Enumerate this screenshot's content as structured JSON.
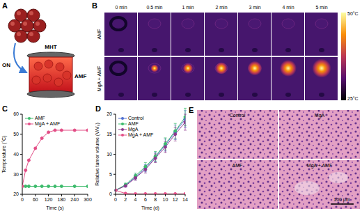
{
  "panel_A": {
    "label": "A",
    "switch": "ON",
    "treatment": "MHT",
    "field": "AMF"
  },
  "panel_B": {
    "label": "B",
    "times": [
      "0 min",
      "0.5 min",
      "1 min",
      "2 min",
      "3 min",
      "4 min",
      "5 min"
    ],
    "rows": [
      "AMF",
      "MgA + AMF"
    ],
    "color_bar_labels": [
      "50°C",
      "25°C"
    ]
  },
  "chart_data": [
    {
      "type": "line",
      "title": "C",
      "x_label": "Time (s)",
      "y_label": "Temperature (°C)",
      "x": [
        0,
        15,
        30,
        60,
        90,
        120,
        150,
        180,
        240,
        300
      ],
      "xlim": [
        0,
        300
      ],
      "xticks": [
        0,
        60,
        120,
        180,
        240,
        300
      ],
      "ylim": [
        20,
        60
      ],
      "yticks": [
        20,
        30,
        40,
        50,
        60
      ],
      "legend": "upper left",
      "series": [
        {
          "name": "AMF",
          "color": "#3dbb6c",
          "marker": "circle",
          "values": [
            24,
            24,
            24,
            24,
            24,
            24,
            24,
            24,
            24,
            24
          ]
        },
        {
          "name": "MgA + AMF",
          "color": "#e34d86",
          "marker": "circle",
          "values": [
            24,
            32,
            37,
            43,
            48,
            51,
            52,
            52,
            52,
            52
          ]
        }
      ]
    },
    {
      "type": "line",
      "title": "D",
      "x_label": "Time (d)",
      "y_label": "Relative tumor volume (V/V₀)",
      "x": [
        0,
        2,
        4,
        6,
        8,
        10,
        12,
        14
      ],
      "xlim": [
        0,
        14
      ],
      "xticks": [
        0,
        2,
        4,
        6,
        8,
        10,
        12,
        14
      ],
      "ylim": [
        0,
        20
      ],
      "yticks": [
        0,
        5,
        10,
        15,
        20
      ],
      "legend": "upper left",
      "series": [
        {
          "name": "Control",
          "color": "#4f6fd0",
          "marker": "circle",
          "values": [
            1,
            2.2,
            4.3,
            6.5,
            9.3,
            12.3,
            15.5,
            18.8
          ],
          "errors": [
            0.1,
            0.4,
            0.7,
            0.9,
            1.2,
            1.5,
            1.8,
            2.1
          ]
        },
        {
          "name": "AMF",
          "color": "#3dbb6c",
          "marker": "circle",
          "values": [
            1,
            2.4,
            4.6,
            6.9,
            9.5,
            12.6,
            15.8,
            19.3
          ],
          "errors": [
            0.1,
            0.4,
            0.7,
            1.0,
            1.2,
            1.5,
            1.9,
            2.2
          ]
        },
        {
          "name": "MgA",
          "color": "#8e3a8e",
          "marker": "circle",
          "values": [
            1,
            2.1,
            4.1,
            6.2,
            9.0,
            11.8,
            15.0,
            18.0
          ],
          "errors": [
            0.1,
            0.3,
            0.6,
            0.9,
            1.1,
            1.4,
            1.7,
            2.0
          ]
        },
        {
          "name": "MgA + AMF",
          "color": "#e34d86",
          "marker": "circle",
          "values": [
            1,
            0.2,
            0.1,
            0.1,
            0.1,
            0.1,
            0.1,
            0.1
          ]
        }
      ]
    }
  ],
  "panel_E": {
    "label": "E",
    "images": [
      "Control",
      "MgA",
      "AMF",
      "MgA + AMF"
    ],
    "scale_bar": "100 μm"
  }
}
